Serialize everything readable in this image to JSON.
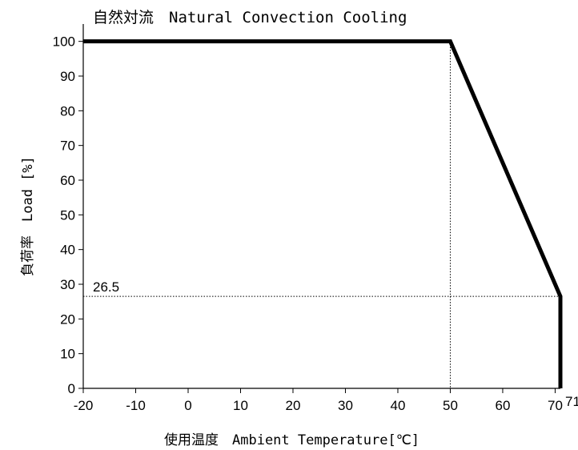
{
  "chart_data": {
    "type": "line",
    "title": "自然対流　Natural Convection Cooling",
    "xlabel": "使用温度　Ambient Temperature[℃]",
    "ylabel": "負荷率　Load [%]",
    "xlim": [
      -20,
      71
    ],
    "ylim": [
      0,
      105
    ],
    "x_ticks": [
      -20,
      -10,
      0,
      10,
      20,
      30,
      40,
      50,
      60,
      70
    ],
    "y_ticks": [
      0,
      10,
      20,
      30,
      40,
      50,
      60,
      70,
      80,
      90,
      100
    ],
    "grid": false,
    "series": [
      {
        "x": [
          -20,
          50,
          71,
          71
        ],
        "y": [
          100,
          100,
          26.5,
          0
        ],
        "color": "#000000"
      }
    ],
    "reference_lines": [
      {
        "type": "vertical",
        "x": 50,
        "y_to": 100,
        "style": "dotted"
      },
      {
        "type": "horizontal",
        "y": 26.5,
        "x_to": 71,
        "style": "dotted"
      }
    ],
    "annotations": [
      {
        "text": "26.5",
        "x": -20,
        "y": 26.5
      },
      {
        "text": "71",
        "x": 71,
        "y": 0
      }
    ]
  }
}
